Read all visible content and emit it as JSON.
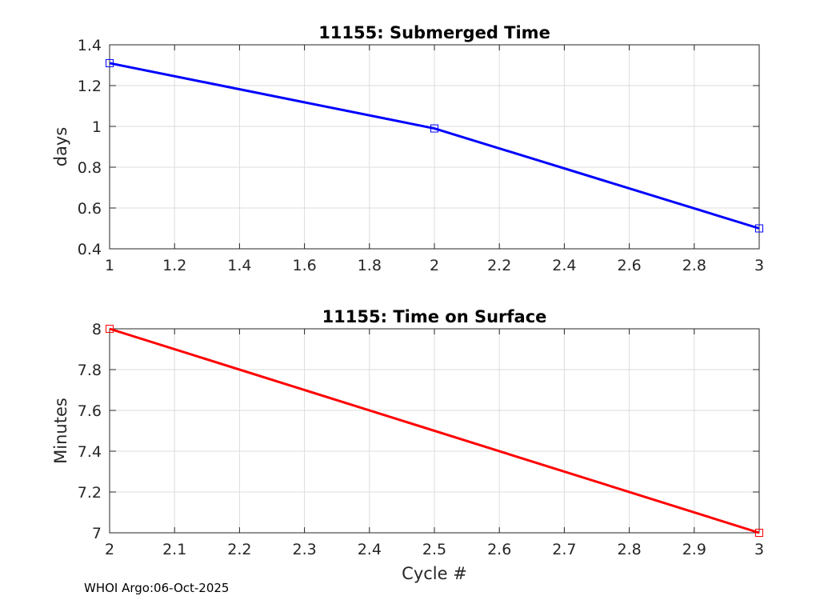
{
  "chart_data": [
    {
      "type": "line",
      "title": "11155: Submerged Time",
      "xlabel": "",
      "ylabel": "days",
      "xlim": [
        1,
        3
      ],
      "ylim": [
        0.4,
        1.4
      ],
      "xticks": [
        1,
        1.2,
        1.4,
        1.6,
        1.8,
        2,
        2.2,
        2.4,
        2.6,
        2.8,
        3
      ],
      "xticklabels": [
        "1",
        "1.2",
        "1.4",
        "1.6",
        "1.8",
        "2",
        "2.2",
        "2.4",
        "2.6",
        "2.8",
        "3"
      ],
      "yticks": [
        0.4,
        0.6,
        0.8,
        1,
        1.2,
        1.4
      ],
      "yticklabels": [
        "0.4",
        "0.6",
        "0.8",
        "1",
        "1.2",
        "1.4"
      ],
      "grid": true,
      "color": "#0000ff",
      "marker": "square",
      "series": [
        {
          "name": "Submerged Time",
          "x": [
            1,
            2,
            3
          ],
          "y": [
            1.31,
            0.99,
            0.5
          ]
        }
      ]
    },
    {
      "type": "line",
      "title": "11155: Time on Surface",
      "xlabel": "Cycle #",
      "ylabel": "Minutes",
      "xlim": [
        2,
        3
      ],
      "ylim": [
        7,
        8
      ],
      "xticks": [
        2,
        2.1,
        2.2,
        2.3,
        2.4,
        2.5,
        2.6,
        2.7,
        2.8,
        2.9,
        3
      ],
      "xticklabels": [
        "2",
        "2.1",
        "2.2",
        "2.3",
        "2.4",
        "2.5",
        "2.6",
        "2.7",
        "2.8",
        "2.9",
        "3"
      ],
      "yticks": [
        7,
        7.2,
        7.4,
        7.6,
        7.8,
        8
      ],
      "yticklabels": [
        "7",
        "7.2",
        "7.4",
        "7.6",
        "7.8",
        "8"
      ],
      "grid": true,
      "color": "#ff0000",
      "marker": "square",
      "series": [
        {
          "name": "Time on Surface",
          "x": [
            2,
            3
          ],
          "y": [
            8,
            7
          ]
        }
      ]
    }
  ],
  "footer": {
    "text": "WHOI Argo:06-Oct-2025"
  }
}
